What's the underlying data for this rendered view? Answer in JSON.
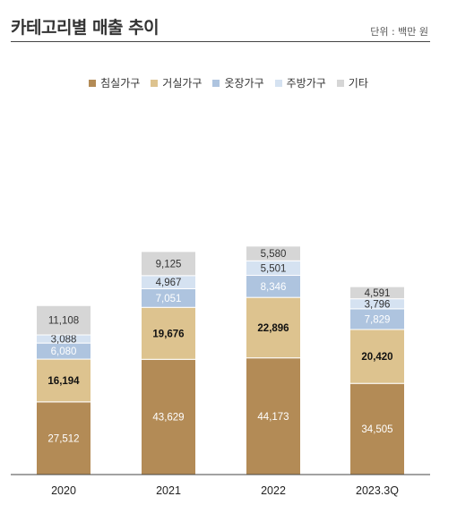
{
  "header": {
    "title": "카테고리별 매출 추이",
    "unit": "단위 : 백만 원"
  },
  "colors": {
    "침실가구": "#b38b56",
    "거실가구": "#ddc38f",
    "옷장가구": "#aec4df",
    "주방가구": "#d5e2f1",
    "기타": "#d6d6d6"
  },
  "chart_data": {
    "type": "bar",
    "stacked": true,
    "categories": [
      "2020",
      "2021",
      "2022",
      "2023.3Q"
    ],
    "series": [
      {
        "name": "침실가구",
        "values": [
          27512,
          43629,
          44173,
          34505
        ]
      },
      {
        "name": "거실가구",
        "values": [
          16194,
          19676,
          22896,
          20420
        ]
      },
      {
        "name": "옷장가구",
        "values": [
          6080,
          7051,
          8346,
          7829
        ]
      },
      {
        "name": "주방가구",
        "values": [
          3088,
          4967,
          5501,
          3796
        ]
      },
      {
        "name": "기타",
        "values": [
          11108,
          9125,
          5580,
          4591
        ]
      }
    ],
    "legend_position": "top-center",
    "grid": false
  }
}
